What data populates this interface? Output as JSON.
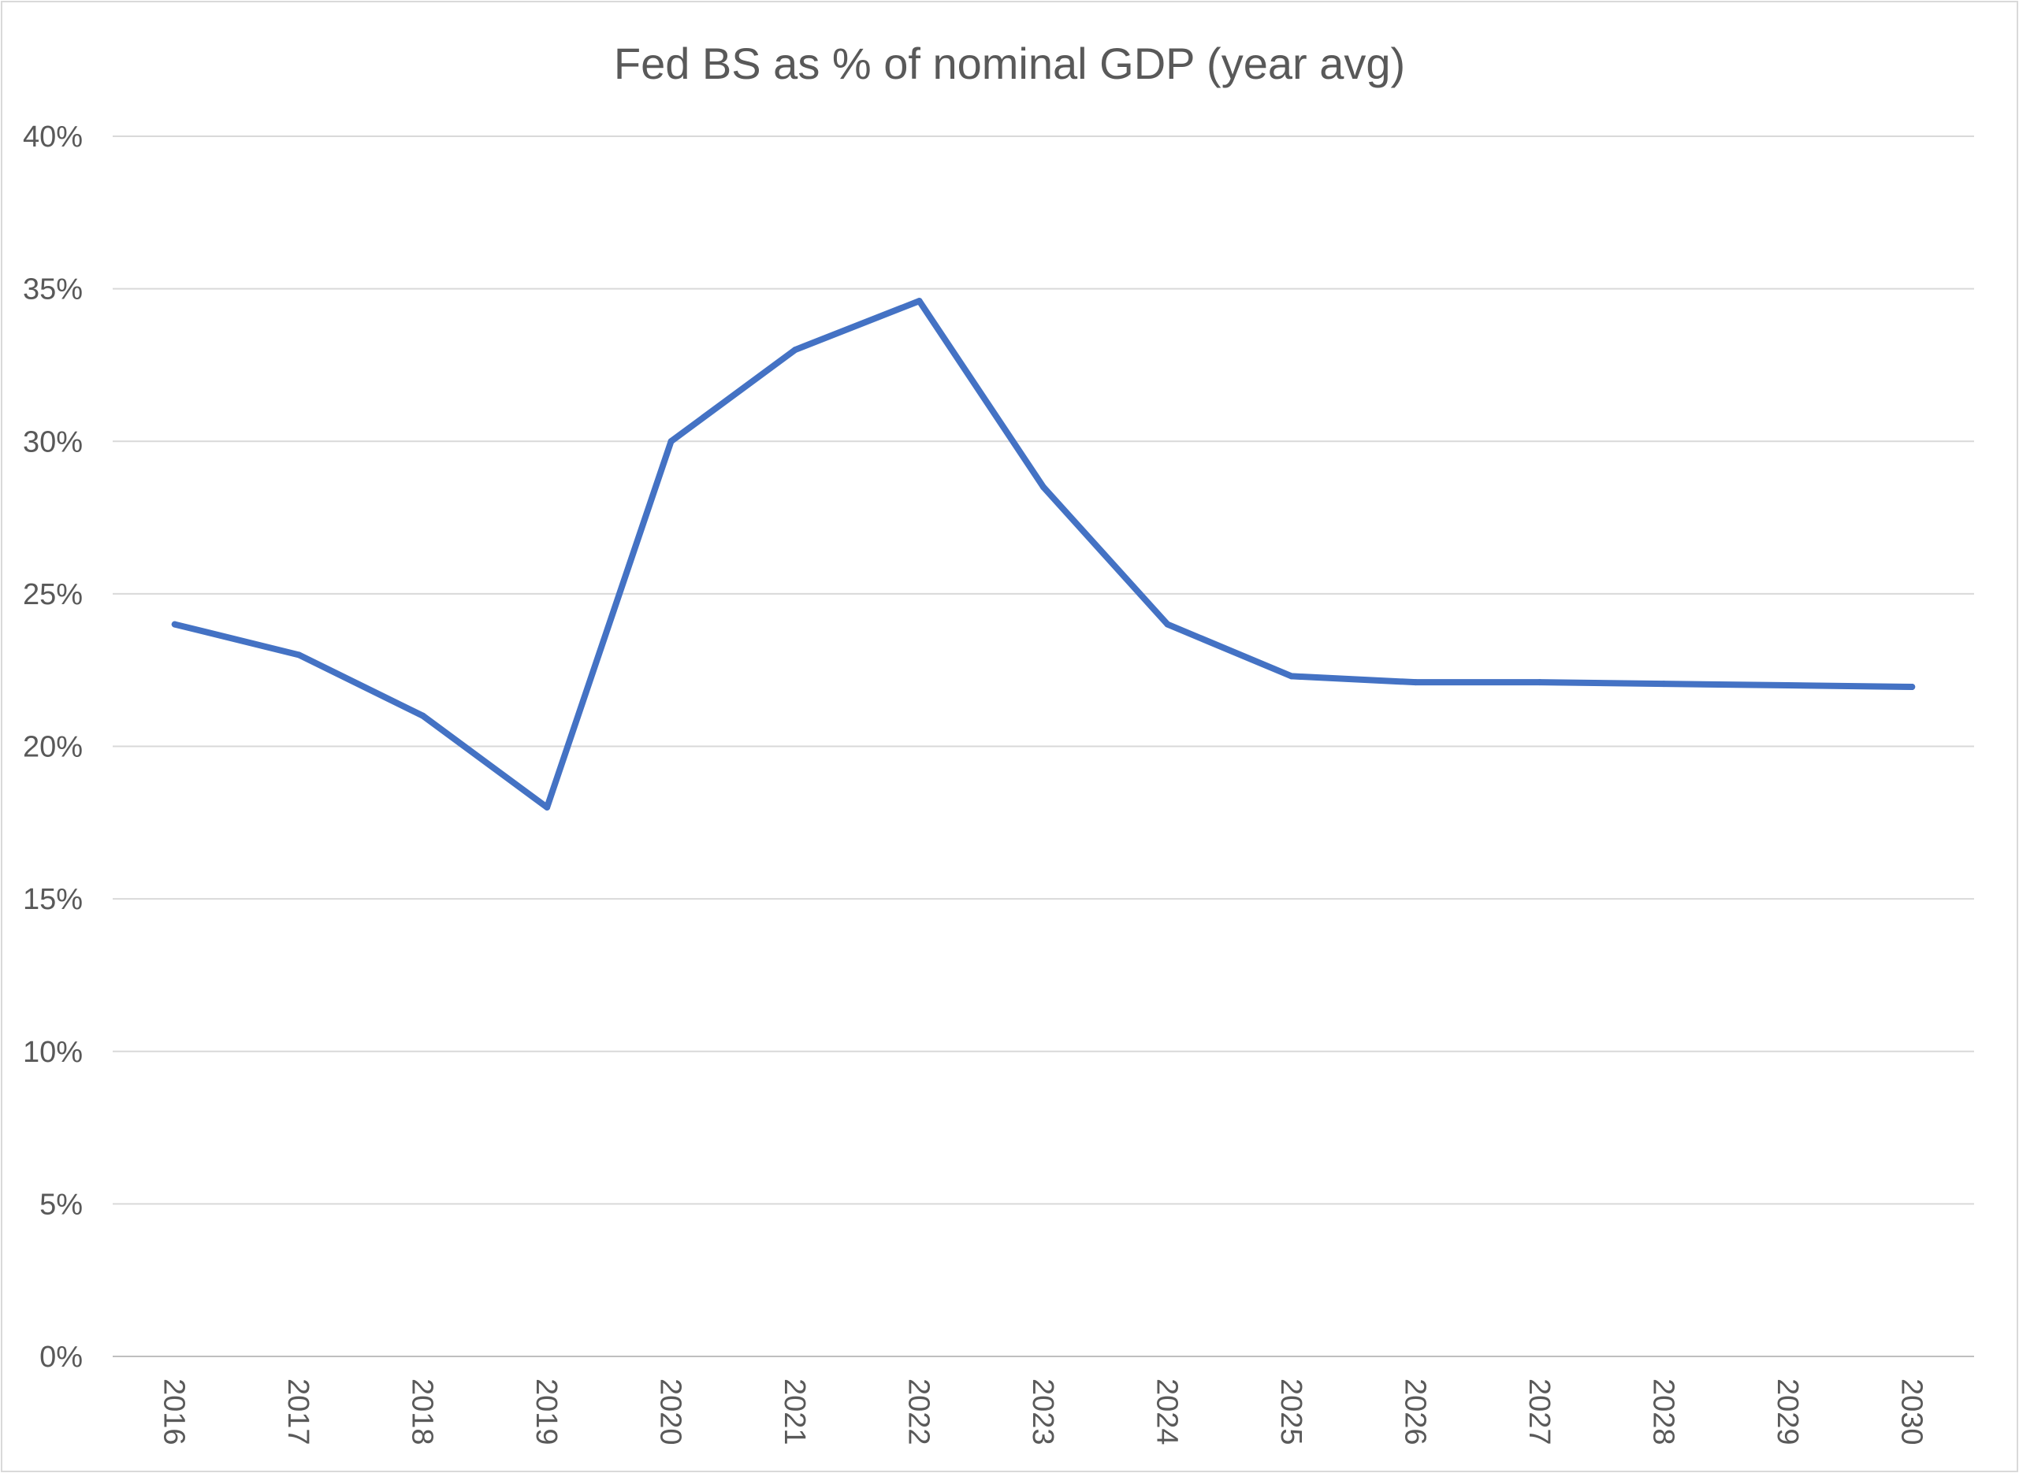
{
  "chart_data": {
    "type": "line",
    "title": "Fed BS as % of nominal GDP (year avg)",
    "xlabel": "",
    "ylabel": "",
    "categories": [
      "2016",
      "2017",
      "2018",
      "2019",
      "2020",
      "2021",
      "2022",
      "2023",
      "2024",
      "2025",
      "2026",
      "2027",
      "2028",
      "2029",
      "2030"
    ],
    "series": [
      {
        "values": [
          24.0,
          23.0,
          21.0,
          18.0,
          30.0,
          33.0,
          34.6,
          28.5,
          24.0,
          22.3,
          22.1,
          22.1,
          22.05,
          22.0,
          21.95
        ],
        "color": "#4472c4"
      }
    ],
    "ylim": [
      0,
      40
    ],
    "yticks": [
      "0%",
      "5%",
      "10%",
      "15%",
      "20%",
      "25%",
      "30%",
      "35%",
      "40%"
    ],
    "grid": true,
    "legend": "none"
  }
}
